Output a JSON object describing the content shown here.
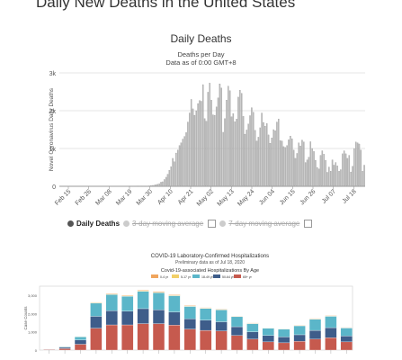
{
  "page": {
    "title": "Daily New Deaths in the United States"
  },
  "colors": {
    "deaths_bar": "#bdbdbd",
    "deaths_edge": "#8a8a8a",
    "age_0_4": "#f0a55d",
    "age_5_17": "#f2d068",
    "age_18_49": "#5bb6c9",
    "age_50_64": "#3e5d8a",
    "age_65_plus": "#c65a4e"
  },
  "chart_data": [
    {
      "type": "bar",
      "title": "Daily Deaths",
      "subtitle_lines": [
        "Deaths per Day",
        "Data as of 0:00 GMT+8"
      ],
      "ylabel": "Novel Coronavirus Daily Deaths",
      "ylim": [
        0,
        3000
      ],
      "yticks": [
        "0",
        "1k",
        "2k",
        "3k"
      ],
      "xticks": [
        "Feb 15",
        "Feb 26",
        "Mar 08",
        "Mar 19",
        "Mar 30",
        "Apr 10",
        "Apr 21",
        "May 02",
        "May 13",
        "May 24",
        "Jun 04",
        "Jun 15",
        "Jun 26",
        "Jul 07",
        "Jul 18"
      ],
      "grid": true,
      "legend": {
        "position": "bottom",
        "items": [
          {
            "label": "Daily Deaths",
            "active": true
          },
          {
            "label": "3-day moving average",
            "active": false
          },
          {
            "label": "7-day moving average",
            "active": false
          }
        ]
      },
      "values": [
        0,
        0,
        0,
        0,
        0,
        0,
        0,
        0,
        0,
        0,
        0,
        0,
        0,
        0,
        0,
        0,
        0,
        0,
        0,
        0,
        0,
        0,
        0,
        0,
        0,
        0,
        0,
        0,
        0,
        0,
        0,
        0,
        0,
        0,
        0,
        0,
        0,
        0,
        0,
        0,
        0,
        1,
        1,
        1,
        2,
        2,
        3,
        3,
        4,
        5,
        5,
        6,
        8,
        12,
        18,
        24,
        28,
        42,
        55,
        70,
        110,
        120,
        180,
        240,
        320,
        420,
        520,
        740,
        650,
        880,
        960,
        1080,
        1150,
        1250,
        1320,
        1420,
        1700,
        1940,
        2300,
        2050,
        1880,
        2000,
        2190,
        2270,
        2250,
        2690,
        1790,
        1720,
        2490,
        2730,
        2280,
        1890,
        1880,
        2100,
        2340,
        2710,
        2600,
        1430,
        1790,
        2280,
        2650,
        2530,
        1840,
        1920,
        1710,
        1780,
        2360,
        2540,
        2460,
        1850,
        1380,
        1490,
        1650,
        1870,
        2080,
        1960,
        1480,
        1200,
        1300,
        1550,
        1940,
        1690,
        1590,
        1660,
        1360,
        1140,
        1280,
        1500,
        1470,
        1700,
        1780,
        1210,
        1200,
        1050,
        1030,
        1080,
        1230,
        1330,
        1260,
        960,
        740,
        870,
        1150,
        1070,
        1220,
        1170,
        630,
        700,
        770,
        1180,
        1000,
        920,
        690,
        500,
        460,
        820,
        940,
        850,
        690,
        370,
        510,
        400,
        700,
        560,
        630,
        540,
        400,
        440,
        860,
        940,
        860,
        740,
        820,
        380,
        530,
        1000,
        1170,
        1150,
        1120,
        960,
        400,
        560
      ],
      "date_range": [
        "Feb 15",
        "Jul 25"
      ]
    },
    {
      "type": "bar",
      "stacked": true,
      "title": "COVID-19 Laboratory-Confirmed Hospitalizations",
      "subtitle": "Preliminary data as of Jul 18, 2020",
      "panel_title": "Covid-19-associated Hospitalizations By Age",
      "ylabel": "Case Counts",
      "yticks": [
        "0",
        "1,000",
        "2,000",
        "3,000"
      ],
      "ylim": [
        0,
        3500
      ],
      "legend": {
        "position": "top",
        "items": [
          "0-4 yr",
          "5-17 yr",
          "18-49 yr",
          "50-64 yr",
          "65+ yr"
        ]
      },
      "categories": [
        "1",
        "2",
        "3",
        "4",
        "5",
        "6",
        "7",
        "8",
        "9",
        "10",
        "11",
        "12",
        "13",
        "14",
        "15",
        "16",
        "17",
        "18",
        "19",
        "20"
      ],
      "series": [
        {
          "name": "65+ yr",
          "values": [
            30,
            80,
            320,
            1200,
            1380,
            1380,
            1450,
            1450,
            1370,
            1150,
            1080,
            1050,
            800,
            600,
            450,
            400,
            480,
            600,
            680,
            450
          ]
        },
        {
          "name": "50-64 yr",
          "values": [
            20,
            70,
            230,
            650,
            780,
            750,
            820,
            760,
            720,
            560,
            560,
            500,
            480,
            400,
            350,
            320,
            360,
            480,
            550,
            320
          ]
        },
        {
          "name": "18-49 yr",
          "values": [
            15,
            40,
            180,
            720,
            880,
            820,
            950,
            930,
            890,
            680,
            640,
            650,
            550,
            450,
            400,
            430,
            490,
            610,
            620,
            440
          ]
        },
        {
          "name": "5-17 yr",
          "values": [
            2,
            4,
            10,
            25,
            30,
            30,
            35,
            30,
            30,
            25,
            25,
            25,
            20,
            18,
            15,
            15,
            18,
            22,
            22,
            18
          ]
        },
        {
          "name": "0-4 yr",
          "values": [
            2,
            4,
            10,
            25,
            35,
            30,
            40,
            40,
            35,
            30,
            25,
            25,
            20,
            20,
            15,
            15,
            20,
            25,
            25,
            20
          ]
        }
      ]
    }
  ]
}
